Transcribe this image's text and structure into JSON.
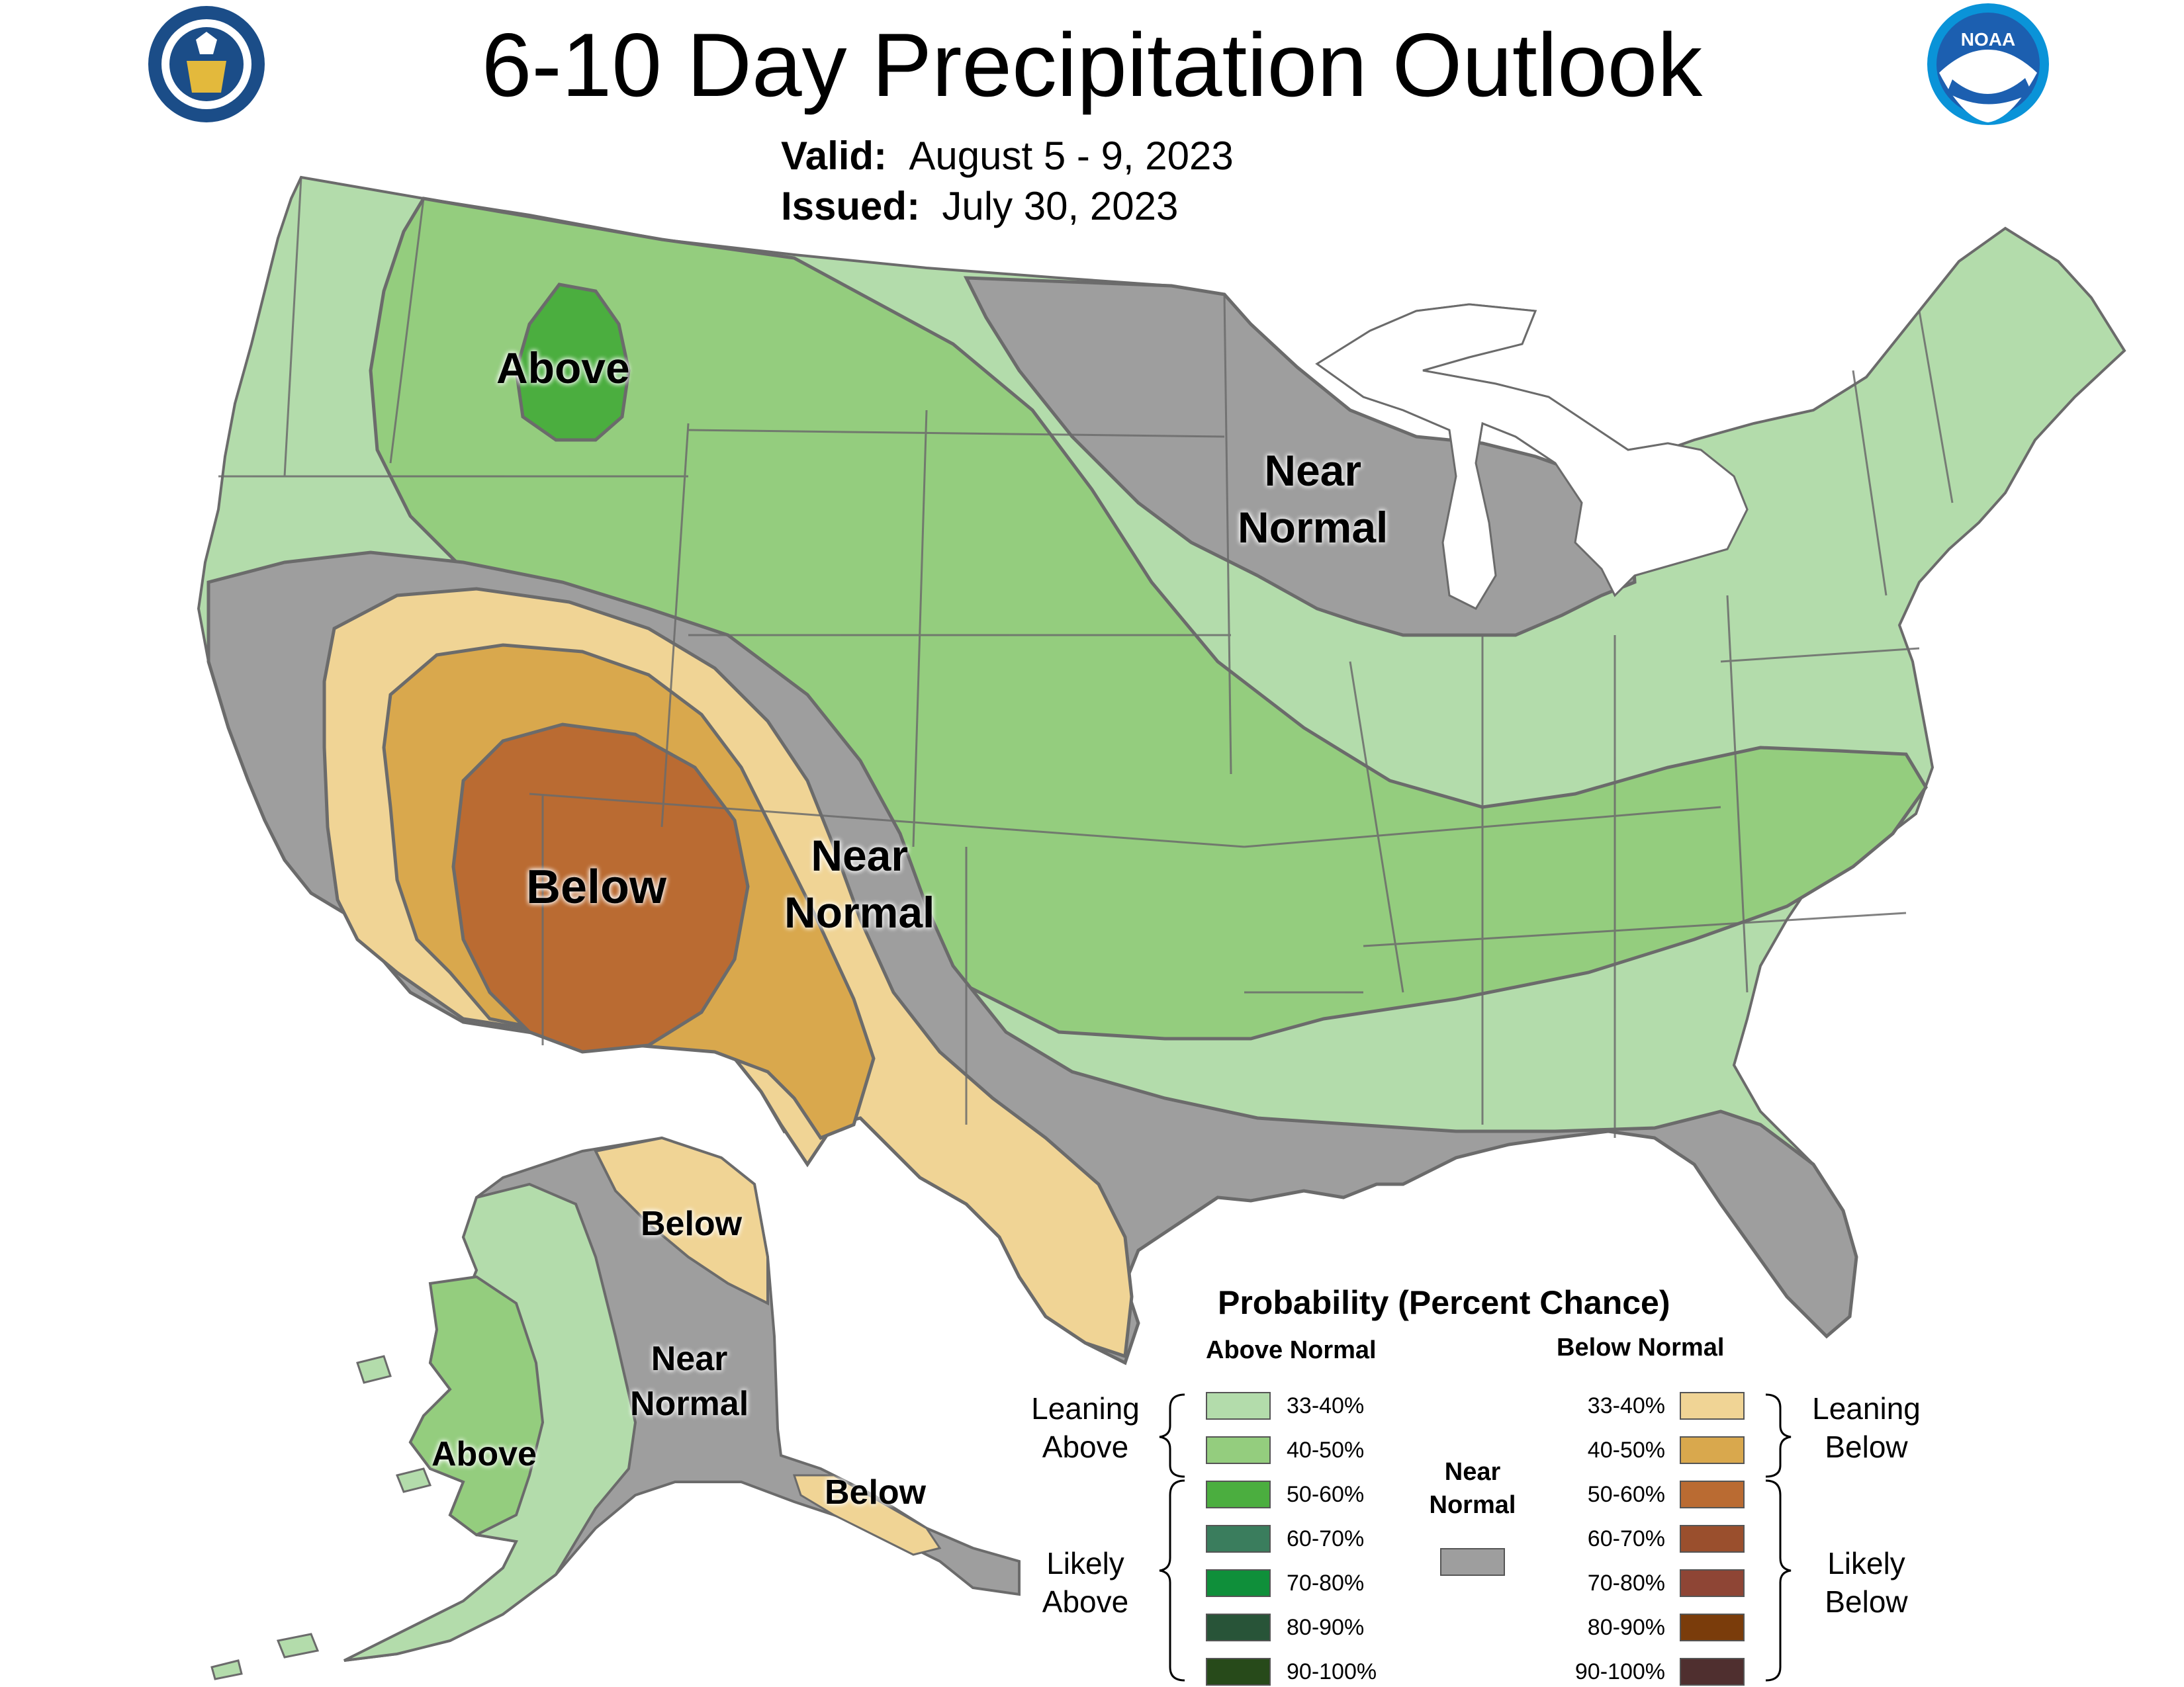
{
  "header": {
    "title": "6-10 Day Precipitation Outlook",
    "valid_label": "Valid:",
    "valid_value": "August 5 - 9, 2023",
    "issued_label": "Issued:",
    "issued_value": "July 30, 2023"
  },
  "logos": {
    "commerce_icon": "department-of-commerce-seal",
    "noaa_icon": "noaa-logo",
    "noaa_text": "NOAA"
  },
  "map_labels": {
    "conus_above": "Above",
    "conus_below": "Below",
    "conus_near_normal_southwest": "Near\nNormal",
    "conus_near_normal_north": "Near\nNormal",
    "alaska_below_north": "Below",
    "alaska_near_normal": "Near\nNormal",
    "alaska_above": "Above",
    "alaska_below_panhandle": "Below"
  },
  "colors": {
    "above_33_40": "#b3dcab",
    "above_40_50": "#94cd7e",
    "above_50_60": "#4bae3f",
    "above_60_70": "#3a7d5d",
    "above_70_80": "#0f8f3a",
    "above_80_90": "#285438",
    "above_90_100": "#274a1a",
    "below_33_40": "#f0d495",
    "below_40_50": "#d9a84d",
    "below_50_60": "#ba6b32",
    "below_60_70": "#9a4f2d",
    "below_70_80": "#8e4535",
    "below_80_90": "#7a3c0b",
    "below_90_100": "#4f2f2f",
    "near_normal": "#9e9e9e",
    "state_border": "#6b6b6b",
    "contour": "#6b6b6b",
    "water": "#ffffff"
  },
  "legend": {
    "title": "Probability (Percent Chance)",
    "above_header": "Above Normal",
    "below_header": "Below Normal",
    "near_normal_label": "Near\nNormal",
    "leaning_above": "Leaning\nAbove",
    "likely_above": "Likely\nAbove",
    "leaning_below": "Leaning\nBelow",
    "likely_below": "Likely\nBelow",
    "above_ranges": [
      "33-40%",
      "40-50%",
      "50-60%",
      "60-70%",
      "70-80%",
      "80-90%",
      "90-100%"
    ],
    "below_ranges": [
      "33-40%",
      "40-50%",
      "50-60%",
      "60-70%",
      "70-80%",
      "80-90%",
      "90-100%"
    ]
  }
}
